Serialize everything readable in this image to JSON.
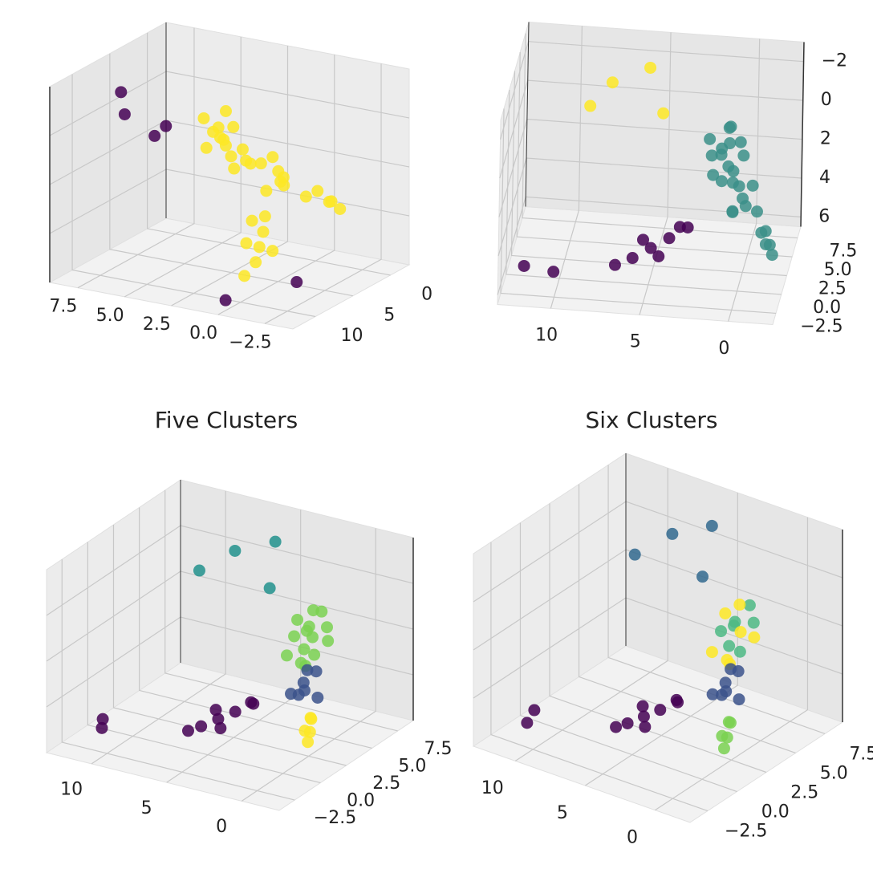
{
  "charts": [
    {
      "chart_data": {
        "type": "scatter3d",
        "xlim": [
          -2.5,
          13
        ],
        "xticks": [
          0,
          5,
          10
        ],
        "ylim": [
          -4,
          9
        ],
        "yticks": [
          {
            "value": -2.5,
            "label": "−2.5"
          },
          {
            "value": 0,
            "label": "0.0"
          },
          {
            "value": 2.5,
            "label": "2.5"
          },
          {
            "value": 5,
            "label": "5.0"
          },
          {
            "value": 7.5,
            "label": "7.5"
          }
        ],
        "zlim": [
          6.5,
          -3
        ],
        "series": [
          {
            "color": "#fde725",
            "x": [
              1,
              1.5,
              0.5,
              1,
              2,
              0.8,
              1.2,
              1.8,
              0.3,
              1.4,
              2.2,
              0.7,
              1.6,
              1,
              0,
              -0.5,
              0.5,
              -0.2,
              0.3,
              -0.8,
              0.6,
              -1.5,
              -1.8,
              -2,
              -1.2,
              -1.6,
              3,
              4,
              5,
              6,
              3.5,
              4.5,
              5.5,
              7
            ],
            "y": [
              4,
              4.5,
              5,
              3.5,
              4,
              4.2,
              5.5,
              3,
              4.8,
              3.8,
              4.6,
              3.2,
              5.2,
              4.4,
              2,
              2.5,
              1.5,
              1.8,
              2.8,
              2.2,
              2.4,
              0.5,
              0,
              -0.5,
              1,
              -0.2,
              1.5,
              1.2,
              1,
              0.8,
              2,
              0.5,
              1.5,
              1
            ],
            "z": [
              0.5,
              1,
              0.8,
              1.5,
              1.2,
              2,
              0.3,
              1.8,
              1.4,
              2.4,
              0.6,
              2.2,
              1.6,
              -0.2,
              2.5,
              2,
              3,
              2.8,
              2.2,
              3.2,
              3.4,
              3.5,
              4,
              4.3,
              3.8,
              3.9,
              4,
              4.5,
              5,
              5.5,
              4.2,
              5.2,
              4.8,
              6
            ]
          },
          {
            "color": "#440154",
            "x": [
              6,
              8,
              5,
              9,
              12,
              10
            ],
            "y": [
              8,
              7,
              6,
              5,
              0,
              -3
            ],
            "z": [
              -1.5,
              -1,
              0,
              -0.5,
              6,
              5
            ]
          }
        ]
      }
    },
    {
      "chart_data": {
        "type": "scatter3d",
        "xlim": [
          -2.5,
          13
        ],
        "xticks": [
          0,
          5,
          10
        ],
        "ylim": [
          -4,
          9
        ],
        "yticks": [
          {
            "value": -2.5,
            "label": "−2.5"
          },
          {
            "value": 0,
            "label": "0.0"
          },
          {
            "value": 2.5,
            "label": "2.5"
          },
          {
            "value": 5,
            "label": "5.0"
          },
          {
            "value": 7.5,
            "label": "7.5"
          }
        ],
        "zlim": [
          6.5,
          -3
        ],
        "zticks": [
          {
            "value": -2,
            "label": "−2"
          },
          0,
          2,
          4,
          6
        ],
        "series": [
          {
            "color": "#3b8f88",
            "x": [
              1,
              1.5,
              0.5,
              1,
              2,
              0.8,
              1.2,
              1.8,
              0.3,
              1.4,
              2.2,
              0.7,
              1.6,
              1,
              0,
              -0.5,
              0.5,
              -0.2,
              0.3,
              -0.8,
              0.6,
              -1.5,
              -1.8,
              -2,
              -1.2,
              -1.6
            ],
            "y": [
              4,
              4.5,
              5,
              3.5,
              4,
              4.2,
              5.5,
              3,
              4.8,
              3.8,
              4.6,
              3.2,
              5.2,
              4.4,
              2,
              2.5,
              1.5,
              1.8,
              2.8,
              2.2,
              2.4,
              0.5,
              0,
              -0.5,
              1,
              -0.2
            ],
            "z": [
              0.5,
              1,
              0.8,
              1.5,
              1.2,
              2,
              0.3,
              1.8,
              1.4,
              2.4,
              0.6,
              2.2,
              1.6,
              -0.2,
              2.5,
              2,
              3,
              2.8,
              2.2,
              3.2,
              3.4,
              3.5,
              4,
              4.3,
              3.8,
              3.9
            ]
          },
          {
            "color": "#440154",
            "x": [
              3,
              4,
              5,
              6,
              3.5,
              4.5,
              5.5,
              7,
              12,
              10
            ],
            "y": [
              1.5,
              1.2,
              1,
              0.8,
              2,
              0.5,
              1.5,
              1,
              0,
              -3
            ],
            "z": [
              4,
              4.5,
              5,
              5.5,
              4.2,
              5.2,
              4.8,
              6,
              6,
              5
            ]
          },
          {
            "color": "#fde725",
            "x": [
              6,
              8,
              5,
              9
            ],
            "y": [
              8,
              7,
              6,
              5
            ],
            "z": [
              -1.5,
              -1,
              0,
              -0.5
            ]
          }
        ]
      }
    },
    {
      "chart_data": {
        "type": "scatter3d",
        "title": "Five Clusters",
        "xlim": [
          -2.5,
          13
        ],
        "xticks": [
          0,
          5,
          10
        ],
        "ylim": [
          -4,
          9
        ],
        "yticks": [
          {
            "value": -2.5,
            "label": "−2.5"
          },
          {
            "value": 0,
            "label": "0.0"
          },
          {
            "value": 2.5,
            "label": "2.5"
          },
          {
            "value": 5,
            "label": "5.0"
          },
          {
            "value": 7.5,
            "label": "7.5"
          }
        ],
        "zlim": [
          6.5,
          -3
        ],
        "series": [
          {
            "color": "#7ad151",
            "x": [
              1,
              1.5,
              0.5,
              1,
              2,
              0.8,
              1.2,
              1.8,
              0.3,
              1.4,
              2.2,
              0.7,
              1.6,
              1
            ],
            "y": [
              4,
              4.5,
              5,
              3.5,
              4,
              4.2,
              5.5,
              3,
              4.8,
              3.8,
              4.6,
              3.2,
              5.2,
              4.4
            ],
            "z": [
              0.5,
              1,
              0.8,
              1.5,
              1.2,
              2,
              0.3,
              1.8,
              1.4,
              2.4,
              0.6,
              2.2,
              1.6,
              -0.2
            ]
          },
          {
            "color": "#3b528b",
            "x": [
              0,
              -0.5,
              0.5,
              -0.2,
              0.3,
              -0.8,
              0.6
            ],
            "y": [
              2,
              2.5,
              1.5,
              1.8,
              2.8,
              2.2,
              2.4
            ],
            "z": [
              2.5,
              2,
              3,
              2.8,
              2.2,
              3.2,
              3.4
            ]
          },
          {
            "color": "#fde725",
            "x": [
              -1.5,
              -1.8,
              -2,
              -1.2,
              -1.6
            ],
            "y": [
              0.5,
              0,
              -0.5,
              1,
              -0.2
            ],
            "z": [
              3.5,
              4,
              4.3,
              3.8,
              3.9
            ]
          },
          {
            "color": "#440154",
            "x": [
              3,
              4,
              5,
              6,
              3.5,
              4.5,
              5.5,
              7,
              12,
              10
            ],
            "y": [
              1.5,
              1.2,
              1,
              0.8,
              2,
              0.5,
              1.5,
              1,
              0,
              -3
            ],
            "z": [
              4,
              4.5,
              5,
              5.5,
              4.2,
              5.2,
              4.8,
              6,
              6,
              5
            ]
          },
          {
            "color": "#21918c",
            "x": [
              6,
              8,
              5,
              9
            ],
            "y": [
              8,
              7,
              6,
              5
            ],
            "z": [
              -1.5,
              -1,
              0,
              -0.5
            ]
          }
        ]
      }
    },
    {
      "chart_data": {
        "type": "scatter3d",
        "title": "Six Clusters",
        "xlim": [
          -2.5,
          13
        ],
        "xticks": [
          0,
          5,
          10
        ],
        "ylim": [
          -4,
          9
        ],
        "yticks": [
          {
            "value": -2.5,
            "label": "−2.5"
          },
          {
            "value": 0,
            "label": "0.0"
          },
          {
            "value": 2.5,
            "label": "2.5"
          },
          {
            "value": 5,
            "label": "5.0"
          },
          {
            "value": 7.5,
            "label": "7.5"
          }
        ],
        "zlim": [
          6.5,
          -3
        ],
        "series": [
          {
            "color": "#4cb884",
            "x": [
              1,
              1.5,
              0.5,
              1,
              2,
              0.8,
              1.2
            ],
            "y": [
              4,
              4.5,
              5,
              3.5,
              4,
              4.2,
              5.5
            ],
            "z": [
              0.5,
              1,
              0.8,
              1.5,
              1.2,
              2,
              0.3
            ]
          },
          {
            "color": "#fde725",
            "x": [
              1.8,
              0.3,
              1.4,
              2.2,
              0.7,
              1.6,
              1
            ],
            "y": [
              3,
              4.8,
              3.8,
              4.6,
              3.2,
              5.2,
              4.4
            ],
            "z": [
              1.8,
              1.4,
              2.4,
              0.6,
              2.2,
              1.6,
              -0.2
            ]
          },
          {
            "color": "#3b528b",
            "x": [
              0,
              -0.5,
              0.5,
              -0.2,
              0.3,
              -0.8,
              0.6
            ],
            "y": [
              2,
              2.5,
              1.5,
              1.8,
              2.8,
              2.2,
              2.4
            ],
            "z": [
              2.5,
              2,
              3,
              2.8,
              2.2,
              3.2,
              3.4
            ]
          },
          {
            "color": "#7ad151",
            "x": [
              -1.5,
              -1.8,
              -2,
              -1.2,
              -1.6
            ],
            "y": [
              0.5,
              0,
              -0.5,
              1,
              -0.2
            ],
            "z": [
              3.5,
              4,
              4.3,
              3.8,
              3.9
            ]
          },
          {
            "color": "#440154",
            "x": [
              3,
              4,
              5,
              6,
              3.5,
              4.5,
              5.5,
              7,
              12,
              10
            ],
            "y": [
              1.5,
              1.2,
              1,
              0.8,
              2,
              0.5,
              1.5,
              1,
              0,
              -3
            ],
            "z": [
              4,
              4.5,
              5,
              5.5,
              4.2,
              5.2,
              4.8,
              6,
              6,
              5
            ]
          },
          {
            "color": "#31688e",
            "x": [
              6,
              8,
              5,
              9
            ],
            "y": [
              8,
              7,
              6,
              5
            ],
            "z": [
              -1.5,
              -1,
              0,
              -0.5
            ]
          }
        ]
      }
    }
  ]
}
